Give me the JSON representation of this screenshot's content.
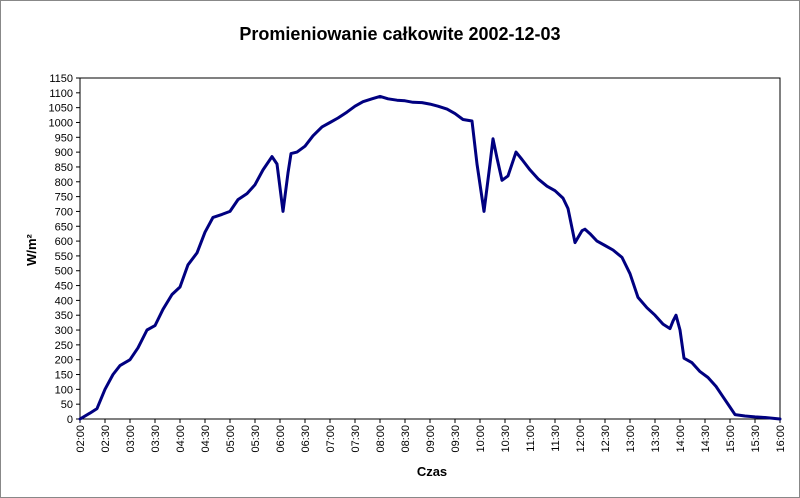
{
  "chart_data": {
    "type": "line",
    "title": "Promieniowanie całkowite 2002-12-03",
    "x_label": "Czas",
    "y_label": "W/m²",
    "color": "#000080",
    "x": [
      2.0,
      2.2,
      2.34,
      2.5,
      2.66,
      2.8,
      3.0,
      3.16,
      3.34,
      3.5,
      3.66,
      3.84,
      4.0,
      4.16,
      4.34,
      4.5,
      4.66,
      4.84,
      5.0,
      5.16,
      5.34,
      5.5,
      5.66,
      5.84,
      5.94,
      6.06,
      6.16,
      6.22,
      6.34,
      6.5,
      6.66,
      6.84,
      7.0,
      7.16,
      7.34,
      7.5,
      7.66,
      7.84,
      8.0,
      8.16,
      8.34,
      8.5,
      8.66,
      8.84,
      9.0,
      9.16,
      9.34,
      9.5,
      9.66,
      9.84,
      9.94,
      10.08,
      10.2,
      10.26,
      10.34,
      10.44,
      10.56,
      10.72,
      10.84,
      11.0,
      11.16,
      11.34,
      11.5,
      11.66,
      11.76,
      11.9,
      12.04,
      12.1,
      12.2,
      12.34,
      12.5,
      12.66,
      12.84,
      13.0,
      13.16,
      13.34,
      13.5,
      13.66,
      13.8,
      13.86,
      13.92,
      14.0,
      14.08,
      14.24,
      14.4,
      14.56,
      14.72,
      14.84,
      15.0,
      15.1,
      15.3,
      15.5,
      15.7,
      16.0
    ],
    "values": [
      0,
      20,
      35,
      100,
      150,
      180,
      200,
      240,
      300,
      315,
      370,
      420,
      445,
      520,
      560,
      630,
      680,
      690,
      700,
      740,
      760,
      790,
      840,
      885,
      860,
      700,
      830,
      895,
      900,
      920,
      955,
      985,
      1000,
      1015,
      1035,
      1055,
      1070,
      1080,
      1088,
      1080,
      1075,
      1073,
      1068,
      1067,
      1062,
      1055,
      1045,
      1030,
      1010,
      1005,
      860,
      700,
      860,
      945,
      880,
      805,
      820,
      900,
      875,
      840,
      810,
      785,
      770,
      745,
      710,
      595,
      635,
      640,
      625,
      600,
      585,
      570,
      545,
      490,
      410,
      375,
      350,
      320,
      305,
      330,
      350,
      300,
      205,
      190,
      160,
      140,
      110,
      80,
      40,
      15,
      10,
      7,
      5,
      0
    ],
    "xlim": [
      2,
      16
    ],
    "ylim": [
      0,
      1150
    ],
    "yticks": [
      0,
      50,
      100,
      150,
      200,
      250,
      300,
      350,
      400,
      450,
      500,
      550,
      600,
      650,
      700,
      750,
      800,
      850,
      900,
      950,
      1000,
      1050,
      1100,
      1150
    ],
    "xticks": [
      {
        "value": 2,
        "label": "02:00"
      },
      {
        "value": 2.5,
        "label": "02:30"
      },
      {
        "value": 3,
        "label": "03:00"
      },
      {
        "value": 3.5,
        "label": "03:30"
      },
      {
        "value": 4,
        "label": "04:00"
      },
      {
        "value": 4.5,
        "label": "04:30"
      },
      {
        "value": 5,
        "label": "05:00"
      },
      {
        "value": 5.5,
        "label": "05:30"
      },
      {
        "value": 6,
        "label": "06:00"
      },
      {
        "value": 6.5,
        "label": "06:30"
      },
      {
        "value": 7,
        "label": "07:00"
      },
      {
        "value": 7.5,
        "label": "07:30"
      },
      {
        "value": 8,
        "label": "08:00"
      },
      {
        "value": 8.5,
        "label": "08:30"
      },
      {
        "value": 9,
        "label": "09:00"
      },
      {
        "value": 9.5,
        "label": "09:30"
      },
      {
        "value": 10,
        "label": "10:00"
      },
      {
        "value": 10.5,
        "label": "10:30"
      },
      {
        "value": 11,
        "label": "11:00"
      },
      {
        "value": 11.5,
        "label": "11:30"
      },
      {
        "value": 12,
        "label": "12:00"
      },
      {
        "value": 12.5,
        "label": "12:30"
      },
      {
        "value": 13,
        "label": "13:00"
      },
      {
        "value": 13.5,
        "label": "13:30"
      },
      {
        "value": 14,
        "label": "14:00"
      },
      {
        "value": 14.5,
        "label": "14:30"
      },
      {
        "value": 15,
        "label": "15:00"
      },
      {
        "value": 15.5,
        "label": "15:30"
      },
      {
        "value": 16,
        "label": "16:00"
      }
    ]
  }
}
